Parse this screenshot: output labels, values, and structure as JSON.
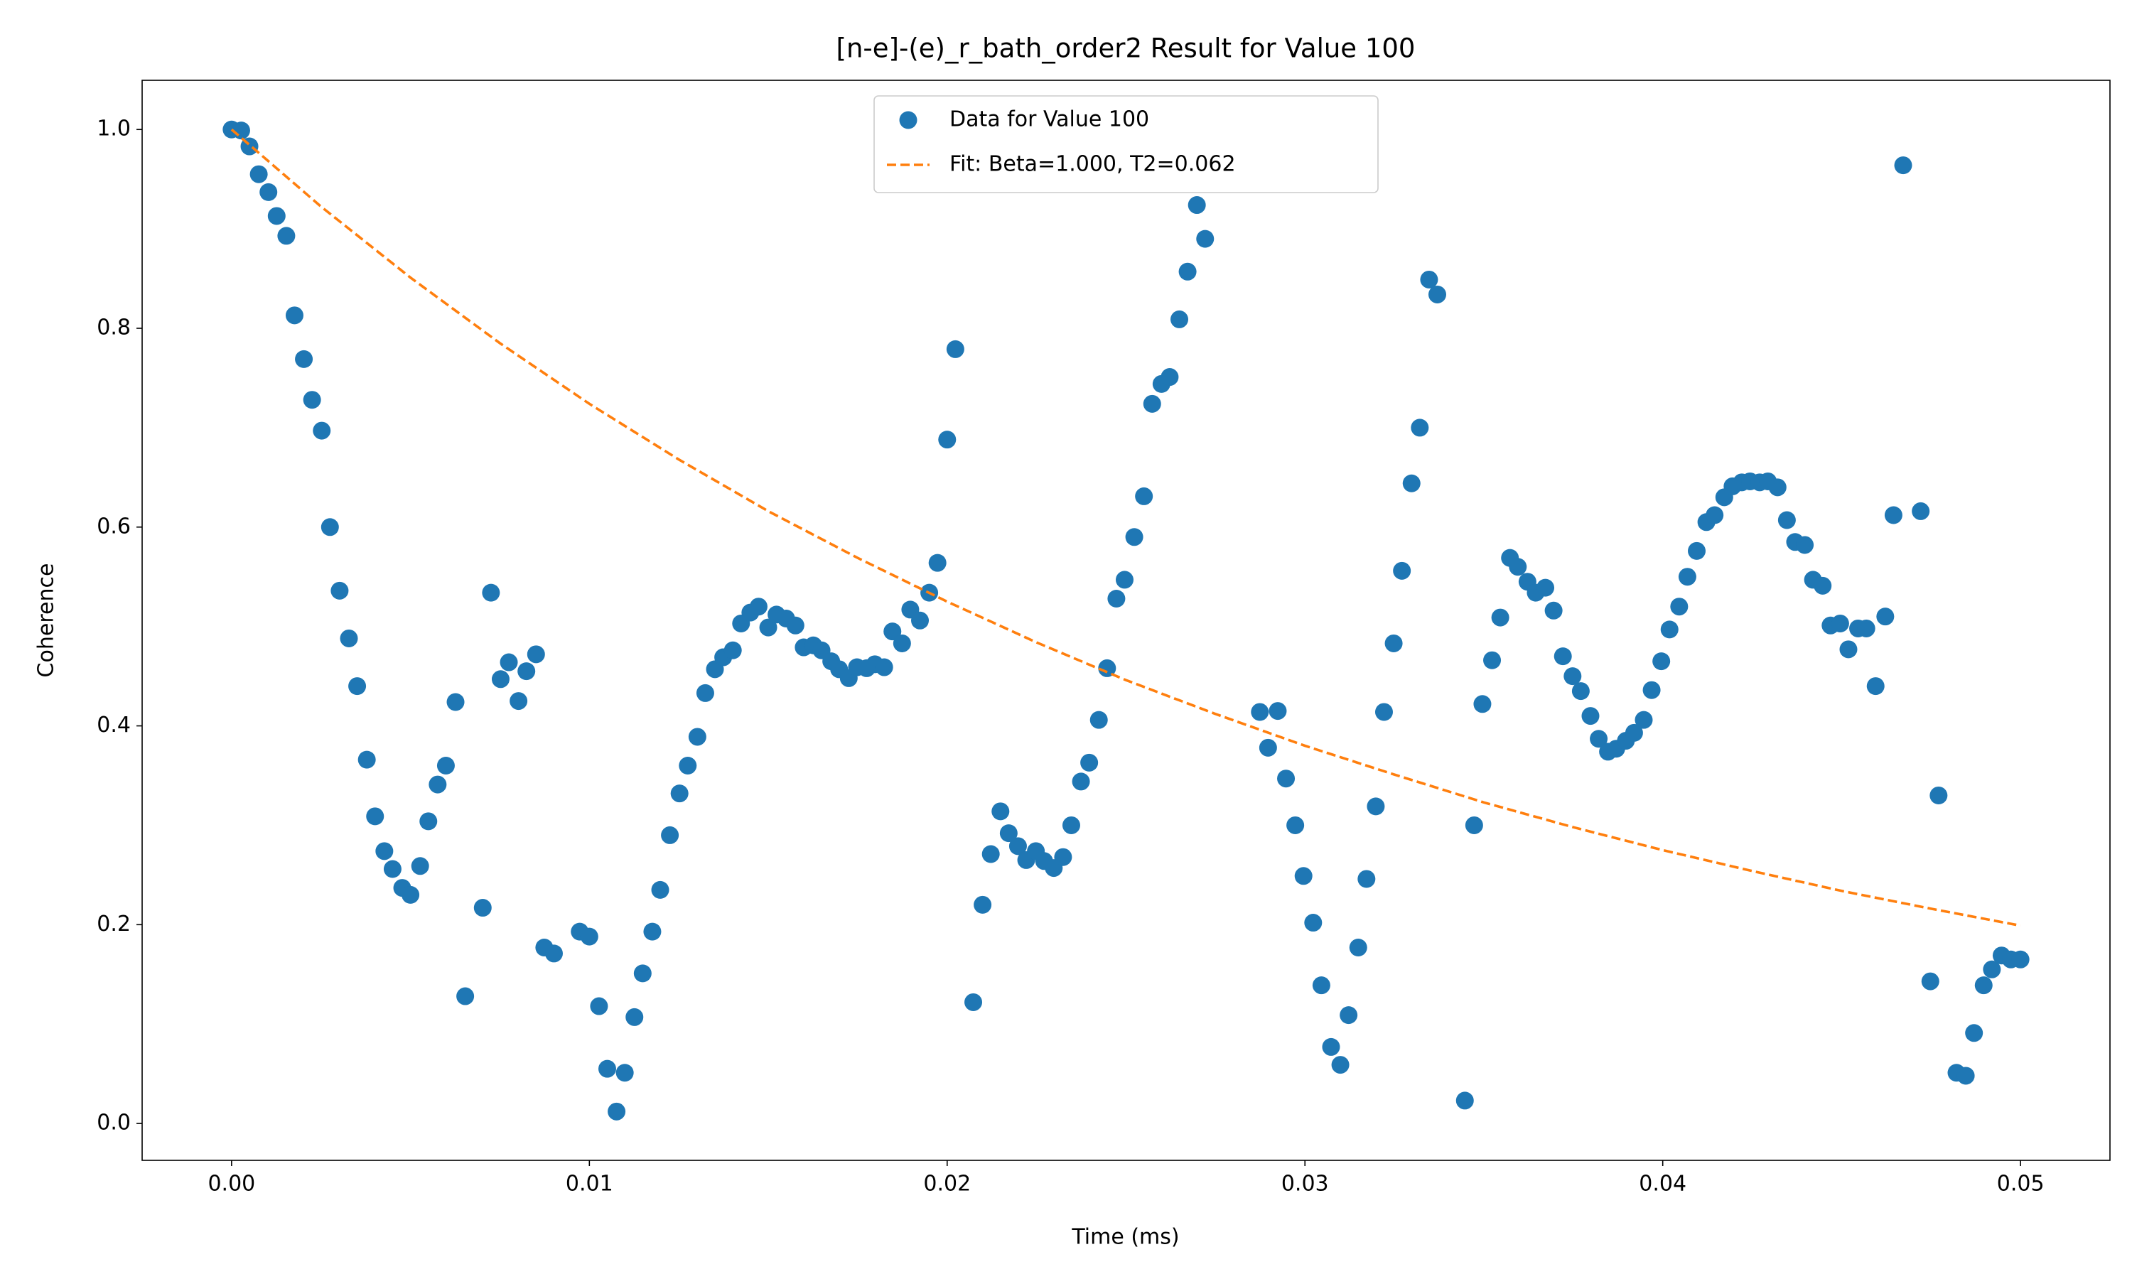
{
  "chart_data": {
    "type": "scatter",
    "title": "[n-e]-(e)_r_bath_order2 Result for Value 100",
    "xlabel": "Time (ms)",
    "ylabel": "Coherence",
    "xlim": [
      -0.0025,
      0.0525
    ],
    "ylim": [
      -0.0371,
      1.0495
    ],
    "xticks": [
      {
        "value": 0,
        "label": "0.00"
      },
      {
        "value": 0.01,
        "label": "0.01"
      },
      {
        "value": 0.02,
        "label": "0.02"
      },
      {
        "value": 0.03,
        "label": "0.03"
      },
      {
        "value": 0.04,
        "label": "0.04"
      },
      {
        "value": 0.05,
        "label": "0.05"
      }
    ],
    "yticks": [
      {
        "value": 0,
        "label": "0.0"
      },
      {
        "value": 0.2,
        "label": "0.2"
      },
      {
        "value": 0.4,
        "label": "0.4"
      },
      {
        "value": 0.6,
        "label": "0.6"
      },
      {
        "value": 0.8,
        "label": "0.8"
      },
      {
        "value": 1.0,
        "label": "1.0"
      }
    ],
    "grid": false,
    "legend": "upper center",
    "series": [
      {
        "name": "Data for Value 100",
        "color": "#1f77b4",
        "style": "markers",
        "x": [
          0,
          0.00027,
          0.0005,
          0.00076,
          0.00103,
          0.00126,
          0.00153,
          0.00176,
          0.00202,
          0.00225,
          0.00252,
          0.00275,
          0.00302,
          0.00328,
          0.00351,
          0.00378,
          0.00401,
          0.00427,
          0.0045,
          0.00477,
          0.005,
          0.00527,
          0.0055,
          0.00576,
          0.00599,
          0.00626,
          0.00653,
          0.00702,
          0.00725,
          0.00752,
          0.00775,
          0.00802,
          0.00824,
          0.00851,
          0.00874,
          0.00901,
          0.00973,
          0.01,
          0.01027,
          0.0105,
          0.01076,
          0.01099,
          0.01126,
          0.01149,
          0.01176,
          0.01198,
          0.01225,
          0.01252,
          0.01275,
          0.01302,
          0.01324,
          0.01351,
          0.01374,
          0.01401,
          0.01424,
          0.0145,
          0.01473,
          0.015,
          0.01523,
          0.0155,
          0.01576,
          0.01599,
          0.01626,
          0.01649,
          0.01676,
          0.01698,
          0.01725,
          0.01748,
          0.01775,
          0.01798,
          0.01824,
          0.01847,
          0.01874,
          0.01897,
          0.01924,
          0.0195,
          0.01973,
          0.02,
          0.02023,
          0.02073,
          0.02099,
          0.02122,
          0.02149,
          0.02172,
          0.02198,
          0.02221,
          0.02248,
          0.02271,
          0.02298,
          0.02324,
          0.02347,
          0.02374,
          0.02397,
          0.02424,
          0.02447,
          0.02473,
          0.02496,
          0.02523,
          0.0255,
          0.02573,
          0.02599,
          0.02622,
          0.02649,
          0.02672,
          0.02698,
          0.02721,
          0.02874,
          0.02897,
          0.02924,
          0.02947,
          0.02973,
          0.02996,
          0.03023,
          0.03046,
          0.03073,
          0.03099,
          0.03122,
          0.03149,
          0.03172,
          0.03198,
          0.03221,
          0.03248,
          0.03271,
          0.03298,
          0.03321,
          0.03347,
          0.0337,
          0.03447,
          0.03473,
          0.03496,
          0.03523,
          0.03546,
          0.03573,
          0.03595,
          0.03622,
          0.03645,
          0.03672,
          0.03695,
          0.03721,
          0.03748,
          0.03771,
          0.03798,
          0.03821,
          0.03847,
          0.0387,
          0.03897,
          0.0392,
          0.03947,
          0.03969,
          0.03996,
          0.04019,
          0.04046,
          0.04069,
          0.04095,
          0.04122,
          0.04145,
          0.04172,
          0.04195,
          0.04221,
          0.04244,
          0.04271,
          0.04294,
          0.04321,
          0.04347,
          0.0437,
          0.04397,
          0.0442,
          0.04447,
          0.04469,
          0.04496,
          0.04519,
          0.04546,
          0.04569,
          0.04595,
          0.04622,
          0.04645,
          0.04672,
          0.04721,
          0.04748,
          0.04771,
          0.04821,
          0.04847,
          0.0487,
          0.04897,
          0.0492,
          0.04947,
          0.04973,
          0.05
        ],
        "values": [
          1.0,
          0.999,
          0.983,
          0.955,
          0.937,
          0.913,
          0.893,
          0.813,
          0.769,
          0.728,
          0.697,
          0.6,
          0.536,
          0.488,
          0.44,
          0.366,
          0.309,
          0.274,
          0.256,
          0.237,
          0.23,
          0.259,
          0.304,
          0.341,
          0.36,
          0.424,
          0.128,
          0.217,
          0.534,
          0.447,
          0.464,
          0.425,
          0.455,
          0.472,
          0.177,
          0.171,
          0.193,
          0.188,
          0.118,
          0.055,
          0.012,
          0.051,
          0.107,
          0.151,
          0.193,
          0.235,
          0.29,
          0.332,
          0.36,
          0.389,
          0.433,
          0.457,
          0.469,
          0.476,
          0.503,
          0.514,
          0.52,
          0.499,
          0.512,
          0.508,
          0.501,
          0.479,
          0.481,
          0.476,
          0.465,
          0.457,
          0.448,
          0.459,
          0.458,
          0.462,
          0.459,
          0.495,
          0.483,
          0.517,
          0.506,
          0.534,
          0.564,
          0.688,
          0.779,
          0.122,
          0.22,
          0.271,
          0.314,
          0.292,
          0.279,
          0.265,
          0.274,
          0.264,
          0.257,
          0.268,
          0.3,
          0.344,
          0.363,
          0.406,
          0.458,
          0.528,
          0.547,
          0.59,
          0.631,
          0.724,
          0.744,
          0.751,
          0.809,
          0.857,
          0.924,
          0.89,
          0.414,
          0.378,
          0.415,
          0.347,
          0.3,
          0.249,
          0.202,
          0.139,
          0.077,
          0.059,
          0.109,
          0.177,
          0.246,
          0.319,
          0.414,
          0.483,
          0.556,
          0.644,
          0.7,
          0.849,
          0.834,
          0.023,
          0.3,
          0.422,
          0.466,
          0.509,
          0.569,
          0.56,
          0.545,
          0.534,
          0.539,
          0.516,
          0.47,
          0.45,
          0.435,
          0.41,
          0.387,
          0.374,
          0.377,
          0.385,
          0.393,
          0.406,
          0.436,
          0.465,
          0.497,
          0.52,
          0.55,
          0.576,
          0.605,
          0.612,
          0.63,
          0.641,
          0.645,
          0.646,
          0.645,
          0.646,
          0.64,
          0.607,
          0.585,
          0.582,
          0.547,
          0.541,
          0.501,
          0.503,
          0.477,
          0.498,
          0.498,
          0.44,
          0.51,
          0.612,
          0.964,
          0.616,
          0.143,
          0.33,
          0.051,
          0.048,
          0.091,
          0.139,
          0.155,
          0.169,
          0.165,
          0.165
        ]
      },
      {
        "name": "Fit: Beta=1.000, T2=0.062",
        "color": "#ff7f0e",
        "style": "dashed",
        "x": [
          0,
          0.0025,
          0.005,
          0.0075,
          0.01,
          0.0125,
          0.015,
          0.0175,
          0.02,
          0.0225,
          0.025,
          0.0275,
          0.03,
          0.0325,
          0.035,
          0.0375,
          0.04,
          0.0425,
          0.045,
          0.0475,
          0.05
        ],
        "values": [
          1,
          0.9225,
          0.851,
          0.785,
          0.724,
          0.668,
          0.616,
          0.569,
          0.525,
          0.484,
          0.446,
          0.412,
          0.38,
          0.351,
          0.323,
          0.298,
          0.275,
          0.254,
          0.234,
          0.216,
          0.199
        ]
      }
    ]
  }
}
